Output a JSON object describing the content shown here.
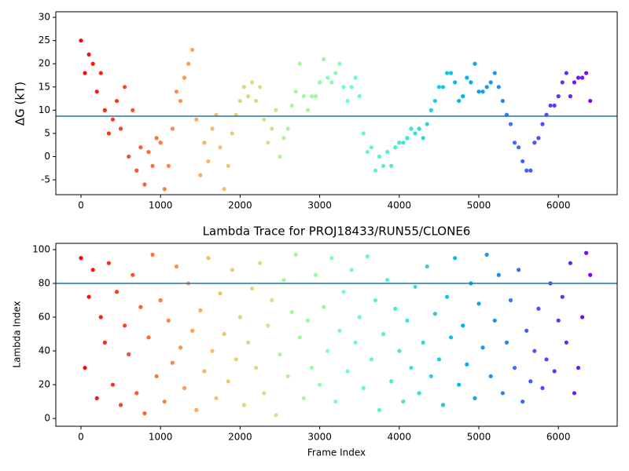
{
  "chart_data": [
    {
      "type": "scatter",
      "ylabel": "ΔG (kT)",
      "colormap": "rainbow_r",
      "hline": 8.7,
      "hline_color": "#1f77b4",
      "xlim": [
        -316,
        6739
      ],
      "xticks": [
        0,
        1000,
        2000,
        3000,
        4000,
        5000,
        6000
      ],
      "ylim": [
        -8.2,
        31.2
      ],
      "yticks": [
        -5,
        0,
        5,
        10,
        15,
        20,
        25,
        30
      ],
      "x": [
        0,
        50,
        100,
        150,
        200,
        250,
        300,
        350,
        400,
        450,
        500,
        550,
        600,
        650,
        700,
        750,
        800,
        850,
        900,
        950,
        1000,
        1050,
        1100,
        1150,
        1200,
        1250,
        1300,
        1350,
        1400,
        1450,
        1500,
        1550,
        1600,
        1650,
        1700,
        1750,
        1800,
        1850,
        1900,
        1950,
        2000,
        2050,
        2100,
        2150,
        2200,
        2250,
        2300,
        2350,
        2400,
        2450,
        2500,
        2550,
        2600,
        2650,
        2700,
        2750,
        2800,
        2850,
        2900,
        2950,
        3000,
        3050,
        3100,
        3150,
        3200,
        3250,
        3300,
        3350,
        3400,
        3450,
        3500,
        3550,
        3600,
        3650,
        3700,
        3750,
        3800,
        3850,
        3900,
        3950,
        4000,
        4050,
        4100,
        4150,
        4200,
        4250,
        4300,
        4350,
        4400,
        4450,
        4500,
        4550,
        4600,
        4650,
        4700,
        4750,
        4800,
        4850,
        4900,
        4950,
        5000,
        5050,
        5100,
        5150,
        5200,
        5250,
        5300,
        5350,
        5400,
        5450,
        5500,
        5550,
        5600,
        5650,
        5700,
        5750,
        5800,
        5850,
        5900,
        5950,
        6000,
        6050,
        6100,
        6150,
        6200,
        6250,
        6300,
        6350,
        6400
      ],
      "y": [
        25,
        18,
        22,
        20,
        14,
        18,
        10,
        5,
        8,
        12,
        6,
        15,
        0,
        10,
        -3,
        2,
        -6,
        1,
        -2,
        4,
        3,
        -7,
        -2,
        6,
        14,
        12,
        17,
        20,
        23,
        8,
        -4,
        3,
        -1,
        6,
        9,
        2,
        -7,
        -2,
        5,
        9,
        12,
        15,
        13,
        16,
        12,
        15,
        8,
        3,
        6,
        10,
        0,
        4,
        6,
        11,
        14,
        20,
        13,
        10,
        13,
        13,
        16,
        21,
        17,
        16,
        18,
        20,
        15,
        12,
        15,
        17,
        13,
        5,
        1,
        2,
        -3,
        0,
        -2,
        1,
        -2,
        2,
        3,
        3,
        4,
        6,
        5,
        6,
        4,
        7,
        10,
        12,
        15,
        15,
        18,
        18,
        16,
        12,
        13,
        17,
        16,
        20,
        14,
        14,
        15,
        16,
        18,
        15,
        12,
        9,
        7,
        3,
        2,
        -1,
        -3,
        -3,
        3,
        4,
        7,
        9,
        11,
        11,
        13,
        16,
        18,
        13,
        16,
        17,
        17,
        18,
        12
      ]
    },
    {
      "type": "scatter",
      "title": "Lambda Trace for PROJ18433/RUN55/CLONE6",
      "xlabel": "Frame Index",
      "ylabel": "Lambda Index",
      "colormap": "rainbow_r",
      "hline": 80,
      "hline_color": "#1f77b4",
      "xlim": [
        -316,
        6739
      ],
      "xticks": [
        0,
        1000,
        2000,
        3000,
        4000,
        5000,
        6000
      ],
      "ylim": [
        -4.6,
        103.7
      ],
      "yticks": [
        0,
        20,
        40,
        60,
        80,
        100
      ],
      "x": [
        0,
        50,
        100,
        150,
        200,
        250,
        300,
        350,
        400,
        450,
        500,
        550,
        600,
        650,
        700,
        750,
        800,
        850,
        900,
        950,
        1000,
        1050,
        1100,
        1150,
        1200,
        1250,
        1300,
        1350,
        1400,
        1450,
        1500,
        1550,
        1600,
        1650,
        1700,
        1750,
        1800,
        1850,
        1900,
        1950,
        2000,
        2050,
        2100,
        2150,
        2200,
        2250,
        2300,
        2350,
        2400,
        2450,
        2500,
        2550,
        2600,
        2650,
        2700,
        2750,
        2800,
        2850,
        2900,
        2950,
        3000,
        3050,
        3100,
        3150,
        3200,
        3250,
        3300,
        3350,
        3400,
        3450,
        3500,
        3550,
        3600,
        3650,
        3700,
        3750,
        3800,
        3850,
        3900,
        3950,
        4000,
        4050,
        4100,
        4150,
        4200,
        4250,
        4300,
        4350,
        4400,
        4450,
        4500,
        4550,
        4600,
        4650,
        4700,
        4750,
        4800,
        4850,
        4900,
        4950,
        5000,
        5050,
        5100,
        5150,
        5200,
        5250,
        5300,
        5350,
        5400,
        5450,
        5500,
        5550,
        5600,
        5650,
        5700,
        5750,
        5800,
        5850,
        5900,
        5950,
        6000,
        6050,
        6100,
        6150,
        6200,
        6250,
        6300,
        6350,
        6400
      ],
      "y": [
        95,
        30,
        72,
        88,
        12,
        60,
        45,
        92,
        20,
        75,
        8,
        55,
        38,
        85,
        15,
        66,
        3,
        48,
        97,
        25,
        70,
        10,
        58,
        33,
        90,
        42,
        18,
        80,
        52,
        5,
        64,
        28,
        95,
        40,
        12,
        74,
        50,
        22,
        88,
        35,
        60,
        8,
        45,
        77,
        30,
        92,
        15,
        55,
        70,
        2,
        38,
        82,
        25,
        63,
        97,
        48,
        12,
        58,
        30,
        85,
        20,
        66,
        40,
        95,
        10,
        52,
        75,
        28,
        88,
        45,
        60,
        18,
        96,
        35,
        70,
        5,
        50,
        82,
        22,
        65,
        40,
        10,
        58,
        30,
        78,
        15,
        45,
        90,
        25,
        62,
        35,
        8,
        72,
        48,
        95,
        20,
        55,
        32,
        80,
        12,
        68,
        42,
        97,
        25,
        58,
        85,
        15,
        45,
        70,
        30,
        88,
        10,
        52,
        22,
        40,
        65,
        18,
        35,
        80,
        28,
        58,
        72,
        45,
        92,
        15,
        30,
        60,
        98,
        85
      ]
    }
  ]
}
